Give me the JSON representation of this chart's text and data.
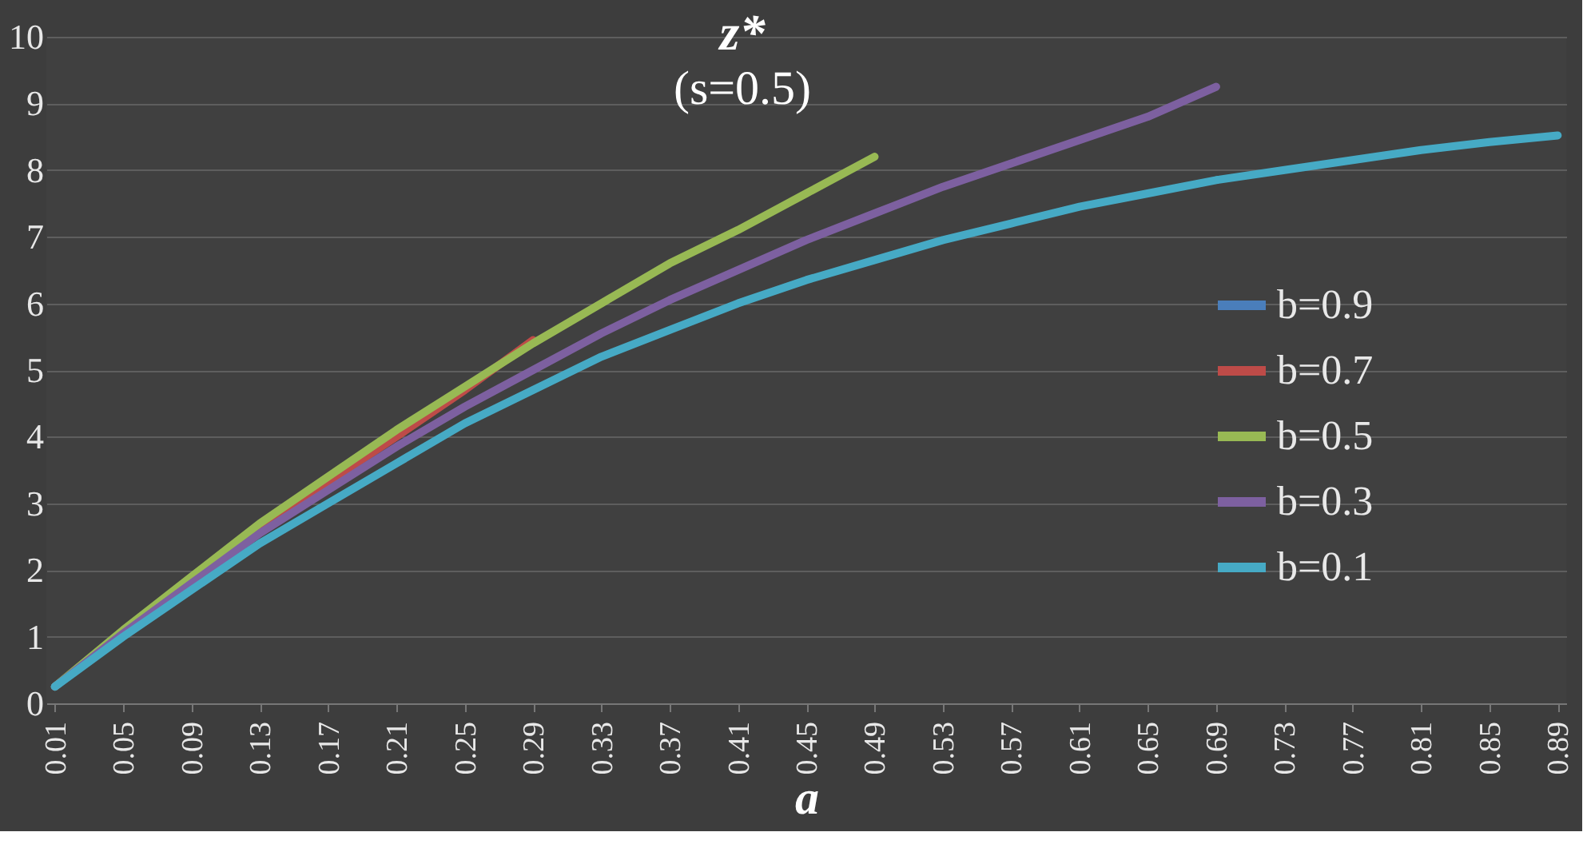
{
  "chart_data": {
    "type": "line",
    "title": "z*",
    "subtitle": "(s=0.5)",
    "xlabel": "a",
    "xlim": [
      0.005,
      0.895
    ],
    "xticks": [
      0.01,
      0.05,
      0.09,
      0.13,
      0.17,
      0.21,
      0.25,
      0.29,
      0.33,
      0.37,
      0.41,
      0.45,
      0.49,
      0.53,
      0.57,
      0.61,
      0.65,
      0.69,
      0.73,
      0.77,
      0.81,
      0.85,
      0.89
    ],
    "ylim": [
      0,
      10
    ],
    "yticks": [
      0,
      1,
      2,
      3,
      4,
      5,
      6,
      7,
      8,
      9,
      10
    ],
    "grid": "y",
    "legend": "right",
    "line_style": "solid",
    "marker": "none",
    "series": [
      {
        "name": "b=0.9",
        "color": "#4a7ebb"
      },
      {
        "name": "b=0.7",
        "color": "#be4b48",
        "x": [
          0.09,
          0.13,
          0.17,
          0.21,
          0.25,
          0.29
        ],
        "values": [
          1.86,
          2.62,
          3.32,
          4.0,
          4.7,
          5.45
        ]
      },
      {
        "name": "b=0.5",
        "color": "#98b954",
        "x": [
          0.01,
          0.05,
          0.09,
          0.13,
          0.17,
          0.21,
          0.25,
          0.29,
          0.33,
          0.37,
          0.41,
          0.45,
          0.49
        ],
        "values": [
          0.25,
          1.1,
          1.9,
          2.7,
          3.4,
          4.1,
          4.75,
          5.4,
          6.0,
          6.6,
          7.1,
          7.65,
          8.2
        ]
      },
      {
        "name": "b=0.3",
        "color": "#7d60a0",
        "x": [
          0.01,
          0.05,
          0.09,
          0.13,
          0.17,
          0.21,
          0.25,
          0.29,
          0.33,
          0.37,
          0.41,
          0.45,
          0.49,
          0.53,
          0.57,
          0.61,
          0.65,
          0.69
        ],
        "values": [
          0.25,
          1.05,
          1.8,
          2.55,
          3.2,
          3.85,
          4.45,
          5.0,
          5.55,
          6.05,
          6.5,
          6.95,
          7.35,
          7.75,
          8.1,
          8.45,
          8.8,
          9.25
        ]
      },
      {
        "name": "b=0.1",
        "color": "#46aac5",
        "x": [
          0.01,
          0.05,
          0.09,
          0.13,
          0.17,
          0.21,
          0.25,
          0.29,
          0.33,
          0.37,
          0.41,
          0.45,
          0.49,
          0.53,
          0.57,
          0.61,
          0.65,
          0.69,
          0.73,
          0.77,
          0.81,
          0.85,
          0.89
        ],
        "values": [
          0.25,
          1.0,
          1.7,
          2.4,
          3.0,
          3.6,
          4.2,
          4.7,
          5.2,
          5.6,
          6.0,
          6.35,
          6.65,
          6.95,
          7.2,
          7.45,
          7.65,
          7.85,
          8.0,
          8.15,
          8.3,
          8.42,
          8.52
        ]
      }
    ]
  }
}
